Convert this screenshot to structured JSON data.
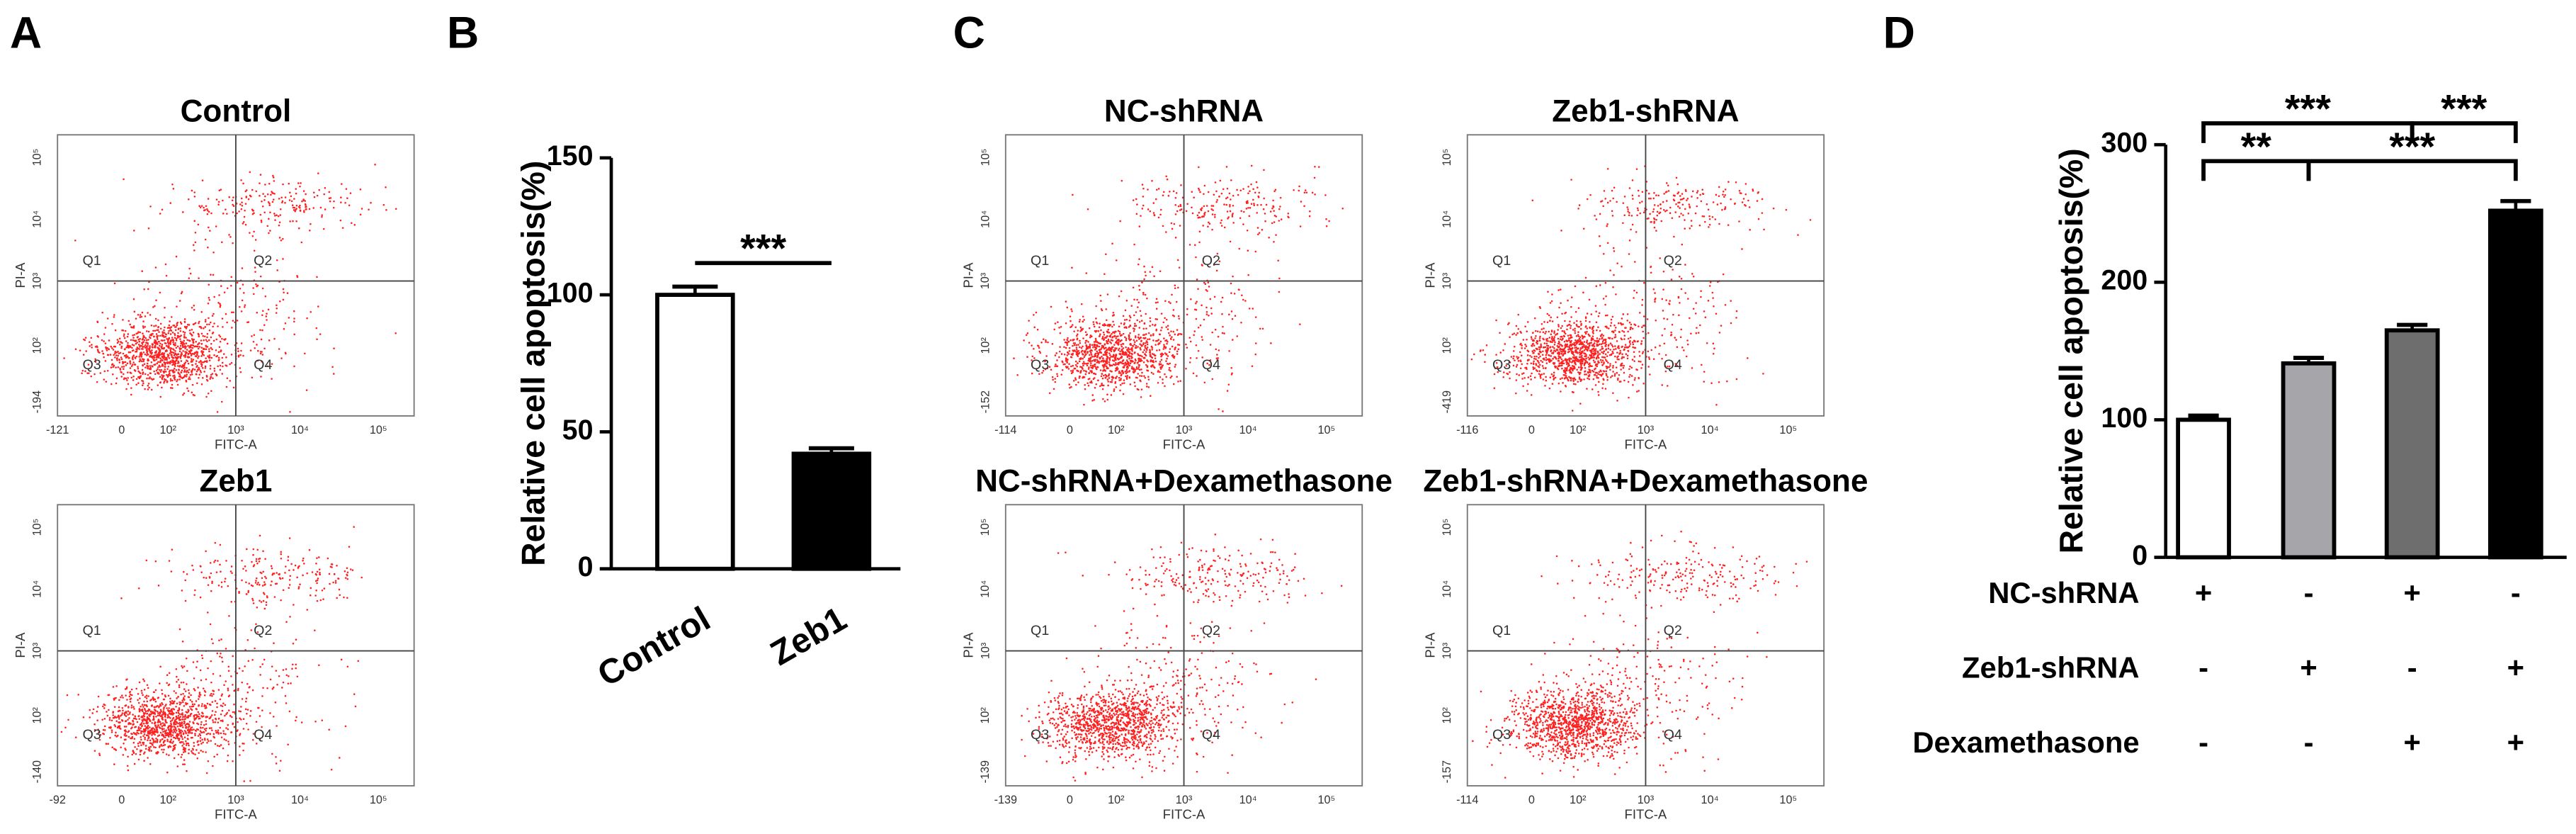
{
  "panel_letters": [
    "A",
    "B",
    "C",
    "D"
  ],
  "flow_plots": [
    {
      "title": "Control",
      "x_label": "FITC-A",
      "y_label": "PI-A",
      "quadrants": [
        "Q1",
        "Q2",
        "Q3",
        "Q4"
      ],
      "x_tick_labels": [
        "-121",
        "0",
        "10²",
        "10³",
        "10⁴",
        "10⁵"
      ],
      "y_tick_labels": [
        "10⁵",
        "10⁴",
        "10³",
        "10²",
        "-194"
      ]
    },
    {
      "title": "Zeb1",
      "x_label": "FITC-A",
      "y_label": "PI-A",
      "quadrants": [
        "Q1",
        "Q2",
        "Q3",
        "Q4"
      ],
      "x_tick_labels": [
        "-92",
        "0",
        "10²",
        "10³",
        "10⁴",
        "10⁵"
      ],
      "y_tick_labels": [
        "10⁵",
        "10⁴",
        "10³",
        "10²",
        "-140"
      ]
    },
    {
      "title": "NC-shRNA",
      "x_label": "FITC-A",
      "y_label": "PI-A",
      "quadrants": [
        "Q1",
        "Q2",
        "Q3",
        "Q4"
      ],
      "x_tick_labels": [
        "-114",
        "0",
        "10²",
        "10³",
        "10⁴",
        "10⁵"
      ],
      "y_tick_labels": [
        "10⁵",
        "10⁴",
        "10³",
        "10²",
        "-152"
      ]
    },
    {
      "title": "Zeb1-shRNA",
      "x_label": "FITC-A",
      "y_label": "PI-A",
      "quadrants": [
        "Q1",
        "Q2",
        "Q3",
        "Q4"
      ],
      "x_tick_labels": [
        "-116",
        "0",
        "10²",
        "10³",
        "10⁴",
        "10⁵"
      ],
      "y_tick_labels": [
        "10⁵",
        "10⁴",
        "10³",
        "10²",
        "-419"
      ]
    },
    {
      "title": "NC-shRNA+Dexamethasone",
      "x_label": "FITC-A",
      "y_label": "PI-A",
      "quadrants": [
        "Q1",
        "Q2",
        "Q3",
        "Q4"
      ],
      "x_tick_labels": [
        "-139",
        "0",
        "10²",
        "10³",
        "10⁴",
        "10⁵"
      ],
      "y_tick_labels": [
        "10⁵",
        "10⁴",
        "10³",
        "10²",
        "-139"
      ]
    },
    {
      "title": "Zeb1-shRNA+Dexamethasone",
      "x_label": "FITC-A",
      "y_label": "PI-A",
      "quadrants": [
        "Q1",
        "Q2",
        "Q3",
        "Q4"
      ],
      "x_tick_labels": [
        "-114",
        "0",
        "10²",
        "10³",
        "10⁴",
        "10⁵"
      ],
      "y_tick_labels": [
        "10⁵",
        "10⁴",
        "10³",
        "10²",
        "-157"
      ]
    }
  ],
  "chart_data": [
    {
      "type": "bar",
      "y_label": "Relative cell apoptosis(%)",
      "categories": [
        "Control",
        "Zeb1"
      ],
      "values": [
        100,
        42
      ],
      "errors": [
        3,
        2
      ],
      "colors": [
        "#ffffff",
        "#000000"
      ],
      "ylim": [
        0,
        150
      ],
      "yticks": [
        0,
        50,
        100,
        150
      ],
      "annotations": [
        "***"
      ]
    },
    {
      "type": "bar",
      "y_label": "Relative cell apoptosis(%)",
      "categories": [
        null,
        null,
        null,
        null
      ],
      "values": [
        100,
        141,
        165,
        252
      ],
      "errors": [
        3,
        4,
        4,
        7
      ],
      "colors": [
        "#ffffff",
        "#a6a6aa",
        "#6e6e6e",
        "#000000"
      ],
      "ylim": [
        0,
        300
      ],
      "yticks": [
        0,
        100,
        200,
        300
      ],
      "annotations": [
        "***",
        "***",
        "**",
        "***"
      ],
      "conditions": [
        {
          "name": "NC-shRNA",
          "values": [
            "+",
            "-",
            "+",
            "-"
          ]
        },
        {
          "name": "Zeb1-shRNA",
          "values": [
            "-",
            "+",
            "-",
            "+"
          ]
        },
        {
          "name": "Dexamethasone",
          "values": [
            "-",
            "-",
            "+",
            "+"
          ]
        }
      ]
    }
  ]
}
